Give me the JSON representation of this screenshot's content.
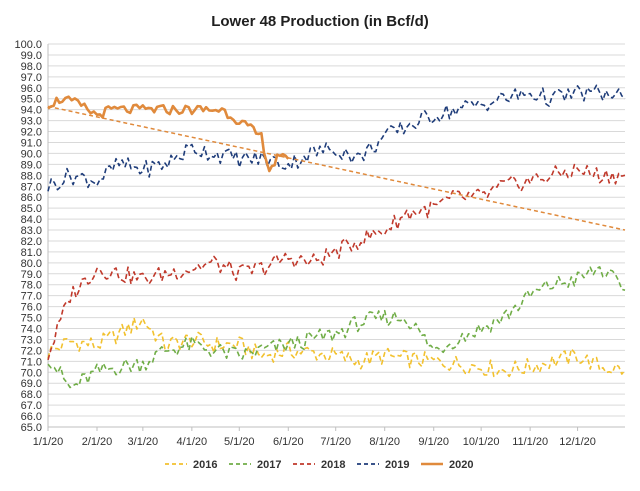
{
  "chart_data": {
    "type": "line",
    "title": "Lower 48 Production (in Bcf/d)",
    "xlabel": "",
    "ylabel": "",
    "ylim": [
      65.0,
      100.0
    ],
    "y_ticks": [
      "65.0",
      "66.0",
      "67.0",
      "68.0",
      "69.0",
      "70.0",
      "71.0",
      "72.0",
      "73.0",
      "74.0",
      "75.0",
      "76.0",
      "77.0",
      "78.0",
      "79.0",
      "80.0",
      "81.0",
      "82.0",
      "83.0",
      "84.0",
      "85.0",
      "86.0",
      "87.0",
      "88.0",
      "89.0",
      "90.0",
      "91.0",
      "92.0",
      "93.0",
      "94.0",
      "95.0",
      "96.0",
      "97.0",
      "98.0",
      "99.0",
      "100.0"
    ],
    "x_ticks": [
      "1/1/20",
      "2/1/20",
      "3/1/20",
      "4/1/20",
      "5/1/20",
      "6/1/20",
      "7/1/20",
      "8/1/20",
      "9/1/20",
      "10/1/20",
      "11/1/20",
      "12/1/20"
    ],
    "grid": true,
    "legend_position": "bottom",
    "x": [
      "1/1/20",
      "1/15/20",
      "2/1/20",
      "2/15/20",
      "3/1/20",
      "3/15/20",
      "4/1/20",
      "4/15/20",
      "5/1/20",
      "5/15/20",
      "6/1/20",
      "6/15/20",
      "7/1/20",
      "7/15/20",
      "8/1/20",
      "8/15/20",
      "9/1/20",
      "9/15/20",
      "10/1/20",
      "10/15/20",
      "11/1/20",
      "11/15/20",
      "12/1/20",
      "12/15/20",
      "12/31/20"
    ],
    "series": [
      {
        "name": "2016",
        "color": "#f2c12e",
        "style": "dashed",
        "values": [
          71.8,
          72.8,
          72.5,
          73.5,
          74.8,
          72.5,
          73.0,
          72.5,
          72.5,
          71.5,
          72.0,
          71.8,
          71.5,
          71.0,
          71.5,
          71.2,
          71.0,
          70.8,
          70.5,
          70.2,
          70.5,
          71.0,
          71.5,
          70.5,
          70.2
        ]
      },
      {
        "name": "2017",
        "color": "#70ad47",
        "style": "dashed",
        "values": [
          71.5,
          68.5,
          70.0,
          70.5,
          70.8,
          72.0,
          72.5,
          72.0,
          71.5,
          72.0,
          72.5,
          73.0,
          73.5,
          74.5,
          75.0,
          75.0,
          72.0,
          73.0,
          74.0,
          75.0,
          77.0,
          78.0,
          78.5,
          79.5,
          77.5
        ]
      },
      {
        "name": "2018",
        "color": "#c0392b",
        "style": "dashed",
        "values": [
          71.5,
          77.0,
          79.5,
          79.0,
          78.5,
          79.0,
          79.5,
          80.0,
          79.0,
          79.5,
          80.5,
          80.0,
          81.0,
          82.0,
          83.0,
          84.5,
          85.0,
          86.0,
          86.0,
          87.0,
          87.5,
          88.0,
          88.5,
          88.0,
          88.0
        ]
      },
      {
        "name": "2019",
        "color": "#1f3d7a",
        "style": "dashed",
        "values": [
          87.0,
          88.0,
          87.5,
          89.0,
          88.5,
          89.0,
          90.5,
          90.0,
          89.5,
          89.5,
          89.0,
          90.0,
          90.5,
          89.5,
          91.5,
          92.5,
          93.5,
          94.0,
          94.5,
          95.0,
          95.5,
          95.0,
          95.5,
          95.5,
          95.0
        ]
      },
      {
        "name": "2020",
        "color": "#e08a3c",
        "style": "solid",
        "x": [
          "1/1/20",
          "1/10/20",
          "1/20/20",
          "2/1/20",
          "2/10/20",
          "2/20/20",
          "3/1/20",
          "3/10/20",
          "3/20/20",
          "4/1/20",
          "4/10/20",
          "4/20/20",
          "5/1/20",
          "5/10/20",
          "5/15/20",
          "5/20/20",
          "5/25/20",
          "6/1/20"
        ],
        "values": [
          94.5,
          95.0,
          94.5,
          93.5,
          94.0,
          94.0,
          94.0,
          94.0,
          94.0,
          94.0,
          94.0,
          94.0,
          93.0,
          92.0,
          91.5,
          88.5,
          89.5,
          89.5
        ]
      }
    ],
    "trendline": {
      "series": "2020",
      "color": "#e08a3c",
      "style": "dashed",
      "start": 94.3,
      "end": 83.0
    }
  }
}
